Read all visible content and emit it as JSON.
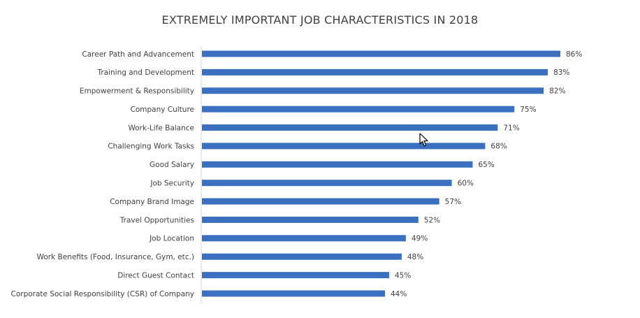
{
  "chart_data": {
    "type": "bar",
    "orientation": "horizontal",
    "title": "EXTREMELY IMPORTANT JOB CHARACTERISTICS IN 2018",
    "xlabel": "",
    "ylabel": "",
    "xlim": [
      0,
      86
    ],
    "grid": false,
    "legend": "none",
    "value_suffix": "%",
    "bar_color": "#3a70bf",
    "categories": [
      "Career Path and Advancement",
      "Training and Development",
      "Empowerment  & Responsibility",
      "Company Culture",
      "Work-Life Balance",
      "Challenging Work Tasks",
      "Good Salary",
      "Job Security",
      "Company Brand Image",
      "Travel Opportunities",
      "Job Location",
      "Work Benefits (Food, Insurance, Gym, etc.)",
      "Direct Guest Contact",
      "Corporate Social Responsibility (CSR) of Company"
    ],
    "values": [
      86,
      83,
      82,
      75,
      71,
      68,
      65,
      60,
      57,
      52,
      49,
      48,
      45,
      44
    ]
  },
  "cursor": {
    "icon": "mouse-pointer-icon"
  }
}
